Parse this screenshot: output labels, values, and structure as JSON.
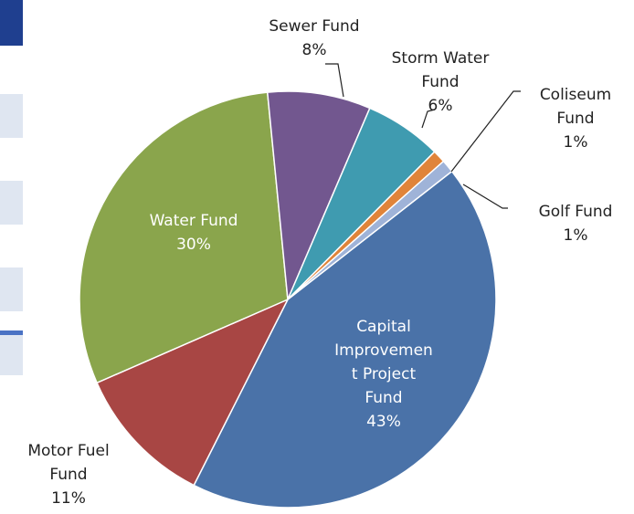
{
  "chart_data": {
    "type": "pie",
    "categories": [
      "Capital Improvement Project Fund",
      "Motor Fuel Fund",
      "Water Fund",
      "Sewer Fund",
      "Storm Water Fund",
      "Coliseum Fund",
      "Golf Fund"
    ],
    "values": [
      43,
      11,
      30,
      8,
      6,
      1,
      1
    ],
    "value_labels": [
      "43%",
      "11%",
      "30%",
      "8%",
      "6%",
      "1%",
      "1%"
    ],
    "colors": [
      "#4a72a8",
      "#a84644",
      "#8aa54c",
      "#72578f",
      "#3f9bb0",
      "#e0843a",
      "#9fb3d8"
    ]
  }
}
